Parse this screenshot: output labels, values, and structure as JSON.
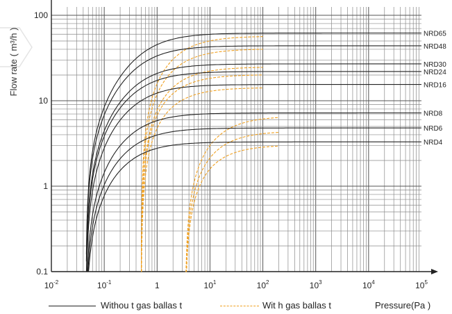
{
  "chart_data": {
    "type": "line",
    "title": "",
    "xlabel": "Pressure(Pa  )",
    "ylabel": "Flow rate ( m³/h )",
    "xscale": "log",
    "yscale": "log",
    "xlim": [
      0.01,
      100000
    ],
    "ylim": [
      0.1,
      100
    ],
    "grid": true,
    "x_ticks": [
      {
        "base": "10",
        "exp": "-2"
      },
      {
        "base": "10",
        "exp": "-1"
      },
      {
        "base": "1",
        "exp": ""
      },
      {
        "base": "10",
        "exp": "1"
      },
      {
        "base": "10",
        "exp": "2"
      },
      {
        "base": "10",
        "exp": "3"
      },
      {
        "base": "10",
        "exp": "4"
      },
      {
        "base": "10",
        "exp": "5"
      }
    ],
    "y_ticks": [
      "0.1",
      "1",
      "10",
      "100"
    ],
    "legend": {
      "placement": "bottom",
      "solid_label": "Withou t gas ballas t",
      "dashed_label": "Wit h gas ballas t"
    },
    "series": [
      {
        "name": "NRD65",
        "ultimate": 62,
        "half_pressure": 0.35,
        "cutoff": 0.045,
        "ballast_cutoff": 0.5,
        "ballast_half": 1.3,
        "ballast_end": 100
      },
      {
        "name": "NRD48",
        "ultimate": 44,
        "half_pressure": 0.3,
        "cutoff": 0.045,
        "ballast_cutoff": 0.5,
        "ballast_half": 1.2,
        "ballast_end": 100
      },
      {
        "name": "NRD30",
        "ultimate": 27,
        "half_pressure": 0.28,
        "cutoff": 0.045,
        "ballast_cutoff": 0.5,
        "ballast_half": 1.1,
        "ballast_end": 100
      },
      {
        "name": "NRD24",
        "ultimate": 22,
        "half_pressure": 0.26,
        "cutoff": 0.045,
        "ballast_cutoff": 0.5,
        "ballast_half": 1.0,
        "ballast_end": 100
      },
      {
        "name": "NRD16",
        "ultimate": 15.5,
        "half_pressure": 0.25,
        "cutoff": 0.045,
        "ballast_cutoff": 0.5,
        "ballast_half": 1.0,
        "ballast_end": 100
      },
      {
        "name": "NRD8",
        "ultimate": 7.2,
        "half_pressure": 0.22,
        "cutoff": 0.045,
        "ballast_cutoff": 3.4,
        "ballast_half": 8,
        "ballast_end": 200
      },
      {
        "name": "NRD6",
        "ultimate": 4.8,
        "half_pressure": 0.2,
        "cutoff": 0.045,
        "ballast_cutoff": 3.4,
        "ballast_half": 7,
        "ballast_end": 200
      },
      {
        "name": "NRD4",
        "ultimate": 3.3,
        "half_pressure": 0.18,
        "cutoff": 0.045,
        "ballast_cutoff": 3.4,
        "ballast_half": 6,
        "ballast_end": 200
      }
    ]
  }
}
